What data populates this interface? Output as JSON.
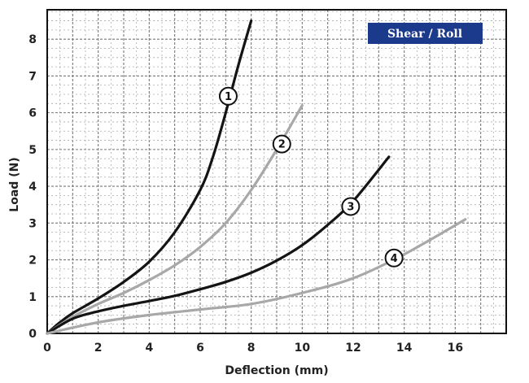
{
  "chart_data": {
    "type": "line",
    "title": "Shear / Roll",
    "xlabel": "Deflection (mm)",
    "ylabel": "Load (N)",
    "xlim": [
      0,
      18
    ],
    "ylim": [
      0,
      8.8
    ],
    "x_ticks": [
      "0",
      "2",
      "4",
      "6",
      "8",
      "10",
      "12",
      "14",
      "16"
    ],
    "y_ticks": [
      "0",
      "1",
      "2",
      "3",
      "4",
      "5",
      "6",
      "7",
      "8"
    ],
    "grid": true,
    "colors": {
      "black": "#141414",
      "gray": "#a8a8a8",
      "badge": "#1c3a8c"
    },
    "series": [
      {
        "name": "1",
        "color": "black",
        "points": [
          [
            0,
            0
          ],
          [
            0.5,
            0.3
          ],
          [
            1,
            0.55
          ],
          [
            2,
            0.95
          ],
          [
            3,
            1.4
          ],
          [
            4,
            1.95
          ],
          [
            5,
            2.75
          ],
          [
            6,
            3.9
          ],
          [
            6.5,
            4.8
          ],
          [
            7,
            6.0
          ],
          [
            7.5,
            7.3
          ],
          [
            8,
            8.5
          ]
        ]
      },
      {
        "name": "2",
        "color": "gray",
        "points": [
          [
            0,
            0
          ],
          [
            1,
            0.45
          ],
          [
            2,
            0.8
          ],
          [
            3,
            1.1
          ],
          [
            4,
            1.45
          ],
          [
            5,
            1.85
          ],
          [
            6,
            2.35
          ],
          [
            7,
            3.0
          ],
          [
            8,
            3.9
          ],
          [
            9,
            5.0
          ],
          [
            10,
            6.2
          ]
        ]
      },
      {
        "name": "3",
        "color": "black",
        "points": [
          [
            0,
            0
          ],
          [
            1,
            0.4
          ],
          [
            2,
            0.6
          ],
          [
            3,
            0.75
          ],
          [
            4,
            0.88
          ],
          [
            5,
            1.02
          ],
          [
            6,
            1.2
          ],
          [
            7,
            1.4
          ],
          [
            8,
            1.65
          ],
          [
            9,
            1.98
          ],
          [
            10,
            2.4
          ],
          [
            11,
            2.95
          ],
          [
            12,
            3.6
          ],
          [
            13.4,
            4.8
          ]
        ]
      },
      {
        "name": "4",
        "color": "gray",
        "points": [
          [
            0,
            0
          ],
          [
            2,
            0.3
          ],
          [
            4,
            0.5
          ],
          [
            6,
            0.65
          ],
          [
            8,
            0.8
          ],
          [
            10,
            1.1
          ],
          [
            12,
            1.5
          ],
          [
            14,
            2.15
          ],
          [
            16.4,
            3.1
          ]
        ]
      }
    ],
    "markers": [
      {
        "label": "1",
        "x": 7.1,
        "y": 6.45
      },
      {
        "label": "2",
        "x": 9.2,
        "y": 5.15
      },
      {
        "label": "3",
        "x": 11.9,
        "y": 3.45
      },
      {
        "label": "4",
        "x": 13.6,
        "y": 2.05
      }
    ]
  }
}
